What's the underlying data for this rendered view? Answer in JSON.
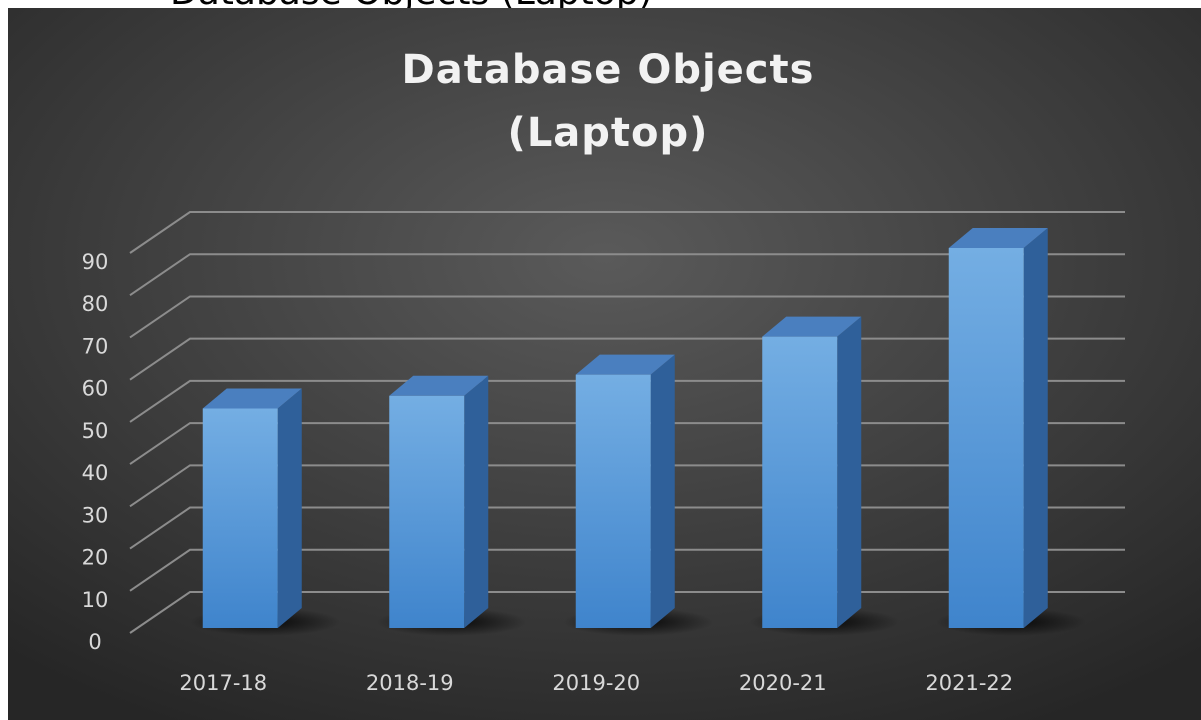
{
  "heading": "Database Objects (Laptop)",
  "chart_data": {
    "type": "bar3d",
    "title": [
      "Database Objects",
      "(Laptop)"
    ],
    "categories": [
      "2017-18",
      "2018-19",
      "2019-20",
      "2020-21",
      "2021-22"
    ],
    "values": [
      52,
      55,
      60,
      69,
      90
    ],
    "color": "#5b9bd5",
    "ylim": [
      0,
      90
    ],
    "yticks": [
      0,
      10,
      20,
      30,
      40,
      50,
      60,
      70,
      80,
      90
    ],
    "grid": true
  }
}
